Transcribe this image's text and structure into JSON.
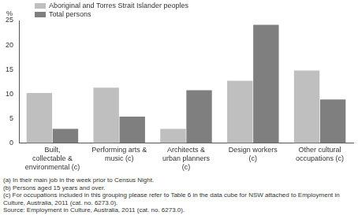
{
  "chart_data": {
    "type": "bar",
    "ylabel": "%",
    "categories": [
      "Built, collectable & environmental (c)",
      "Performing arts & music (c)",
      "Architects & urban planners (c)",
      "Design workers (c)",
      "Other cultural occupations (c)"
    ],
    "series": [
      {
        "name": "Aboriginal and Torres Strait Islander peoples",
        "color": "#bfbfbf",
        "values": [
          10.2,
          11.3,
          2.9,
          12.7,
          14.8
        ]
      },
      {
        "name": "Total persons",
        "color": "#7f7f7f",
        "values": [
          2.9,
          5.4,
          10.8,
          24.1,
          8.9
        ]
      }
    ],
    "ylim": [
      0,
      25
    ],
    "yticks": [
      0,
      5,
      10,
      15,
      20,
      25
    ],
    "grid": false,
    "legend": "top-left",
    "notes": [
      "(a) In their main job in the week prior to Census Night.",
      "(b) Persons aged 15 years and over.",
      "(c) For occupations included in this grouping please refer to Table 6 in the data cube for NSW attached to Employment in Culture, Australia, 2011 (cat. no. 6273.0)."
    ],
    "source": "Source: Employment in Culture, Australia, 2011 (cat. no. 6273.0)."
  }
}
